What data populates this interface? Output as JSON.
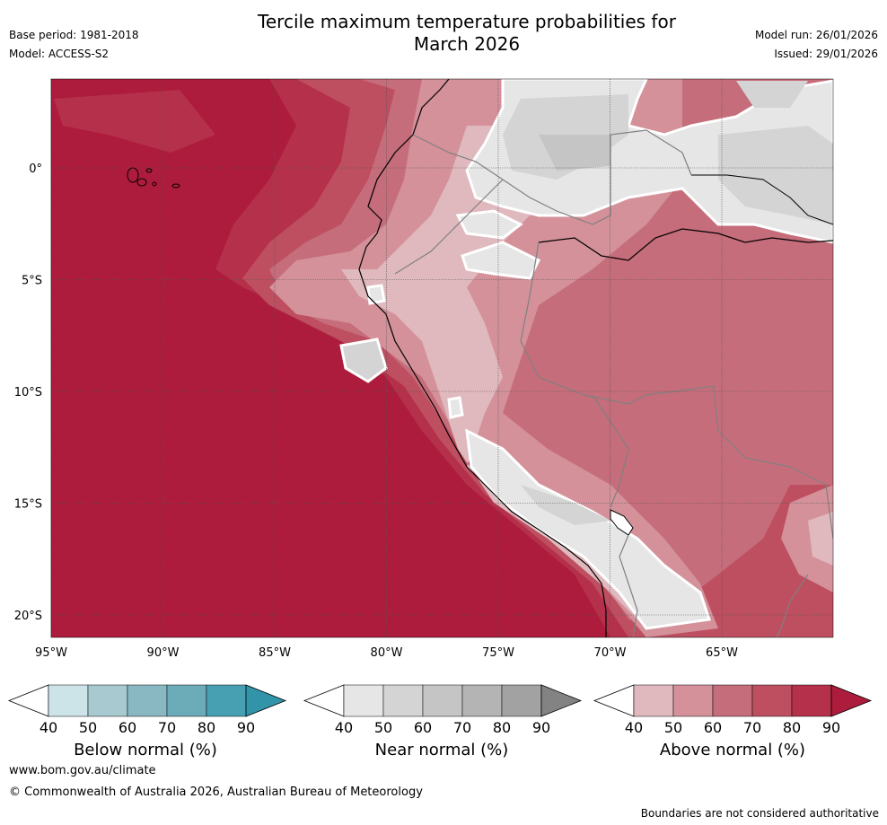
{
  "header": {
    "title_line1": "Tercile maximum temperature probabilities for",
    "title_line2": "March 2026",
    "base_period": "Base period: 1981-2018",
    "model": "Model: ACCESS-S2",
    "model_run": "Model run: 26/01/2026",
    "issued": "Issued: 29/01/2026"
  },
  "map": {
    "lat_labels": [
      "0°",
      "5°S",
      "10°S",
      "15°S",
      "20°S"
    ],
    "lon_labels": [
      "95°W",
      "90°W",
      "85°W",
      "80°W",
      "75°W",
      "70°W",
      "65°W"
    ],
    "lat_values": [
      0,
      -5,
      -10,
      -15,
      -20
    ],
    "lon_values": [
      -95,
      -90,
      -85,
      -80,
      -75,
      -70,
      -65
    ]
  },
  "colorbars": [
    {
      "label": "Below normal (%)",
      "ticks": [
        "40",
        "50",
        "60",
        "70",
        "80",
        "90"
      ],
      "colors": [
        "#cce3e8",
        "#a7c9cf",
        "#89b8c3",
        "#6cabb8",
        "#47a0b2",
        "#3194a9"
      ]
    },
    {
      "label": "Near normal (%)",
      "ticks": [
        "40",
        "50",
        "60",
        "70",
        "80",
        "90"
      ],
      "colors": [
        "#e6e6e6",
        "#d4d4d4",
        "#c5c5c5",
        "#b4b4b4",
        "#a2a2a2",
        "#838383"
      ]
    },
    {
      "label": "Above normal (%)",
      "ticks": [
        "40",
        "50",
        "60",
        "70",
        "80",
        "90"
      ],
      "colors": [
        "#e0b9be",
        "#d4919a",
        "#c66d7b",
        "#bd4f60",
        "#b5304a",
        "#ad1c3c"
      ]
    }
  ],
  "footer": {
    "website": "www.bom.gov.au/climate",
    "copyright": "© Commonwealth of Australia 2026, Australian Bureau of Meteorology",
    "disclaimer": "Boundaries are not considered authoritative"
  },
  "palette": {
    "sea_dark": "#b01c3a",
    "above90": "#ad1c3c",
    "above80": "#b5304a",
    "above70": "#bd4f60",
    "above60": "#c66d7b",
    "above50": "#d4919a",
    "above40": "#e0b9be",
    "near40": "#e6e6e6",
    "near50": "#d4d4d4",
    "near60": "#c5c5c5",
    "coast": "#000000",
    "border": "#808080"
  }
}
